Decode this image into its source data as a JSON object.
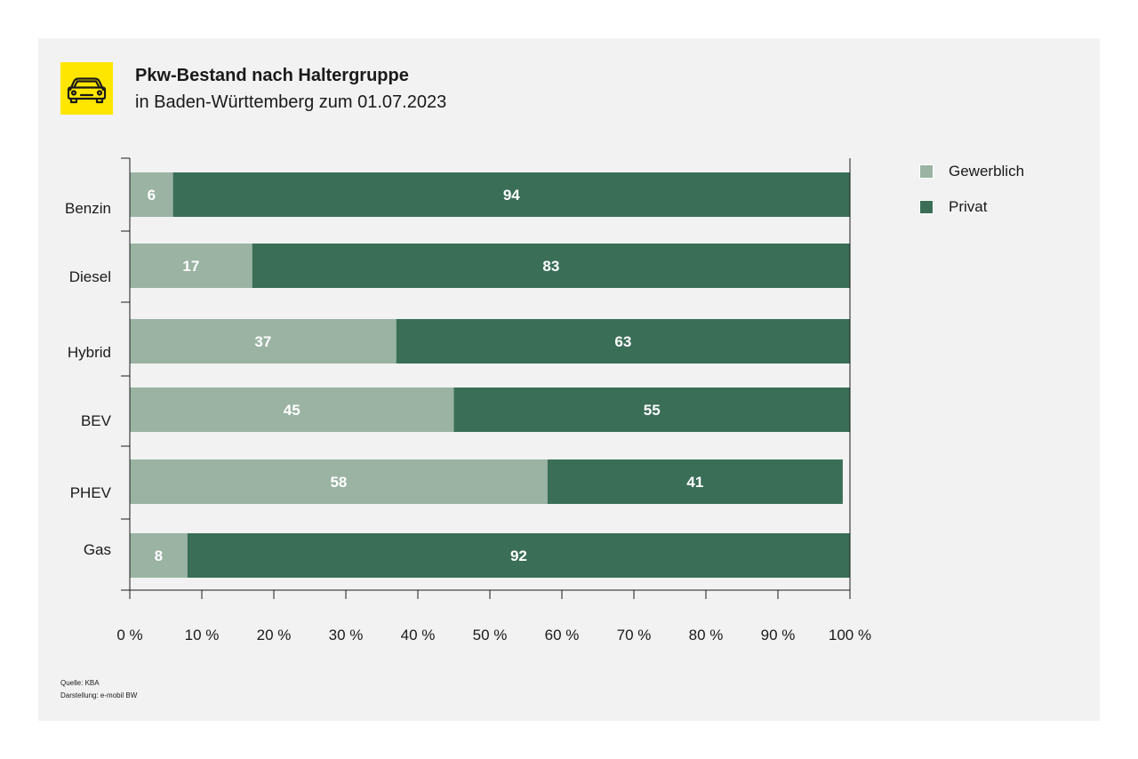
{
  "header": {
    "title": "Pkw-Bestand nach Haltergruppe",
    "subtitle": "in Baden-Württemberg zum 01.07.2023",
    "icon": "car-icon"
  },
  "chart_data": {
    "type": "bar",
    "orientation": "horizontal",
    "stacked": true,
    "categories": [
      "Benzin",
      "Diesel",
      "Hybrid",
      "BEV",
      "PHEV",
      "Gas"
    ],
    "series": [
      {
        "name": "Gewerblich",
        "color": "#9ab3a3",
        "values": [
          6,
          17,
          37,
          45,
          58,
          8
        ]
      },
      {
        "name": "Privat",
        "color": "#3a6e57",
        "values": [
          94,
          83,
          63,
          55,
          41,
          92
        ]
      }
    ],
    "xlim": [
      0,
      100
    ],
    "xticks": [
      0,
      10,
      20,
      30,
      40,
      50,
      60,
      70,
      80,
      90,
      100
    ],
    "xtick_labels": [
      "0 %",
      "10 %",
      "20 %",
      "30 %",
      "40 %",
      "50 %",
      "60 %",
      "70 %",
      "80 %",
      "90 %",
      "100 %"
    ],
    "grid": false,
    "legend_position": "right"
  },
  "footer": {
    "source": "Quelle: KBA",
    "credit": "Darstellung: e-mobil BW"
  }
}
